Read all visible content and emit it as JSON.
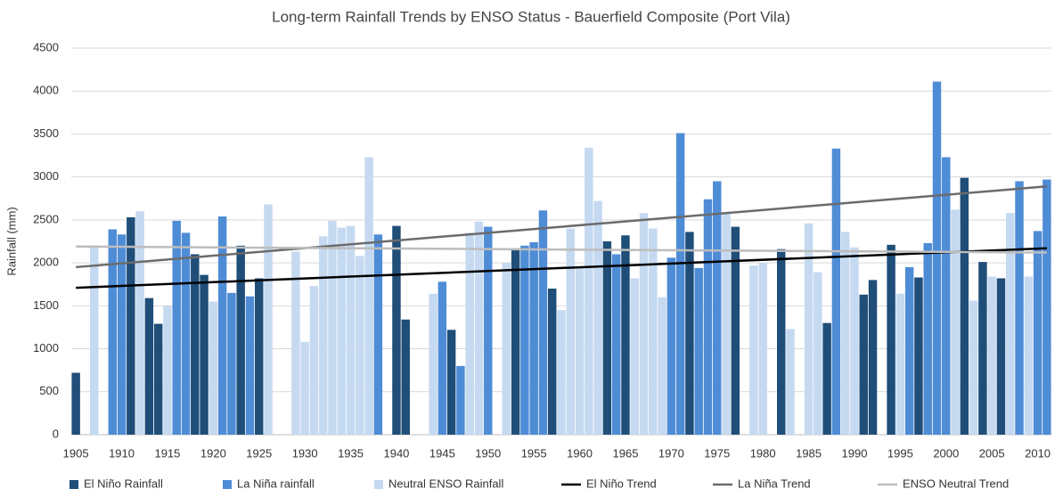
{
  "chart_data": {
    "type": "bar",
    "title": "Long-term Rainfall Trends by ENSO Status - Bauerfield Composite (Port Vila)",
    "y_label": "Rainfall (mm)",
    "categories": [
      "1905",
      null,
      null,
      null,
      null,
      "1910",
      null,
      null,
      null,
      null,
      "1915",
      null,
      null,
      null,
      null,
      "1920",
      null,
      null,
      null,
      null,
      "1925",
      null,
      null,
      null,
      null,
      "1930",
      null,
      null,
      null,
      null,
      "1935",
      null,
      null,
      null,
      null,
      "1940",
      null,
      null,
      null,
      null,
      "1945",
      null,
      null,
      null,
      null,
      "1950",
      null,
      null,
      null,
      null,
      "1955",
      null,
      null,
      null,
      null,
      "1960",
      null,
      null,
      null,
      null,
      "1965",
      null,
      null,
      null,
      null,
      "1970",
      null,
      null,
      null,
      null,
      "1975",
      null,
      null,
      null,
      null,
      "1980",
      null,
      null,
      null,
      null,
      "1985",
      null,
      null,
      null,
      null,
      "1990",
      null,
      null,
      null,
      null,
      "1995",
      null,
      null,
      null,
      null,
      "2000",
      null,
      null,
      null,
      null,
      "2005",
      null,
      null,
      null,
      null,
      "2010",
      null
    ],
    "series": [
      {
        "name": "El Niño Rainfall",
        "color": "#1f4e79",
        "values": [
          720,
          null,
          null,
          null,
          null,
          null,
          2530,
          null,
          1590,
          1290,
          null,
          null,
          null,
          2100,
          1860,
          null,
          null,
          null,
          2200,
          null,
          1820,
          null,
          null,
          null,
          null,
          null,
          null,
          null,
          null,
          null,
          null,
          null,
          null,
          null,
          null,
          2430,
          1340,
          null,
          null,
          null,
          null,
          1220,
          null,
          null,
          null,
          null,
          null,
          null,
          2170,
          null,
          null,
          null,
          1700,
          null,
          null,
          null,
          null,
          null,
          2250,
          null,
          2320,
          null,
          null,
          null,
          null,
          null,
          null,
          2360,
          null,
          null,
          null,
          null,
          2420,
          null,
          null,
          null,
          null,
          2160,
          null,
          null,
          null,
          null,
          1300,
          null,
          null,
          null,
          1630,
          1800,
          null,
          2210,
          null,
          null,
          1830,
          null,
          null,
          null,
          null,
          2990,
          null,
          2010,
          null,
          1820,
          null,
          null,
          null,
          null,
          null
        ]
      },
      {
        "name": "La Niña rainfall",
        "color": "#4f8cd6",
        "values": [
          null,
          null,
          null,
          null,
          2390,
          2330,
          null,
          null,
          null,
          null,
          null,
          2490,
          2350,
          null,
          null,
          null,
          2540,
          1650,
          null,
          1610,
          null,
          null,
          null,
          null,
          null,
          null,
          null,
          null,
          null,
          null,
          null,
          null,
          null,
          2330,
          null,
          null,
          null,
          null,
          null,
          null,
          1780,
          null,
          800,
          null,
          null,
          2420,
          null,
          null,
          null,
          2200,
          2240,
          2610,
          null,
          null,
          null,
          null,
          null,
          null,
          null,
          2100,
          null,
          null,
          null,
          null,
          null,
          2060,
          3510,
          null,
          1940,
          2740,
          2950,
          null,
          null,
          null,
          null,
          null,
          null,
          null,
          null,
          null,
          null,
          null,
          null,
          3330,
          null,
          null,
          null,
          null,
          null,
          null,
          null,
          1950,
          null,
          2230,
          4110,
          3230,
          null,
          null,
          null,
          null,
          null,
          null,
          null,
          2950,
          null,
          2370,
          2970
        ]
      },
      {
        "name": "Neutral ENSO Rainfall",
        "color": "#c5d9f1",
        "values": [
          null,
          null,
          2200,
          null,
          null,
          null,
          null,
          2600,
          null,
          null,
          1500,
          null,
          null,
          null,
          null,
          1550,
          null,
          null,
          null,
          null,
          null,
          2680,
          null,
          null,
          2130,
          1080,
          1730,
          2310,
          2490,
          2410,
          2430,
          2080,
          3230,
          null,
          null,
          null,
          null,
          null,
          null,
          1640,
          null,
          null,
          null,
          2350,
          2480,
          null,
          null,
          2000,
          null,
          null,
          null,
          null,
          null,
          1450,
          2400,
          1940,
          3340,
          2720,
          null,
          null,
          null,
          1820,
          2580,
          2400,
          1600,
          null,
          null,
          null,
          null,
          null,
          null,
          2570,
          null,
          null,
          1970,
          2000,
          null,
          null,
          1230,
          null,
          2460,
          1890,
          null,
          null,
          2360,
          2180,
          null,
          null,
          null,
          null,
          1640,
          null,
          null,
          null,
          null,
          null,
          2620,
          null,
          1560,
          null,
          1840,
          null,
          2580,
          null,
          1840,
          null,
          null
        ]
      }
    ],
    "trend_lines": [
      {
        "name": "El Niño Trend",
        "color": "#000000",
        "x": [
          1905,
          2011
        ],
        "values": [
          1710,
          2170
        ]
      },
      {
        "name": "La Niña Trend",
        "color": "#6b6b6b",
        "x": [
          1905,
          2011
        ],
        "values": [
          1950,
          2890
        ]
      },
      {
        "name": "ENSO Neutral Trend",
        "color": "#bdbdbd",
        "x": [
          1905,
          2011
        ],
        "values": [
          2190,
          2120
        ]
      }
    ],
    "ylim": [
      0,
      4500
    ],
    "yticks": [
      0,
      500,
      1000,
      1500,
      2000,
      2500,
      3000,
      3500,
      4000,
      4500
    ],
    "grid": true,
    "legend": "bottom"
  }
}
